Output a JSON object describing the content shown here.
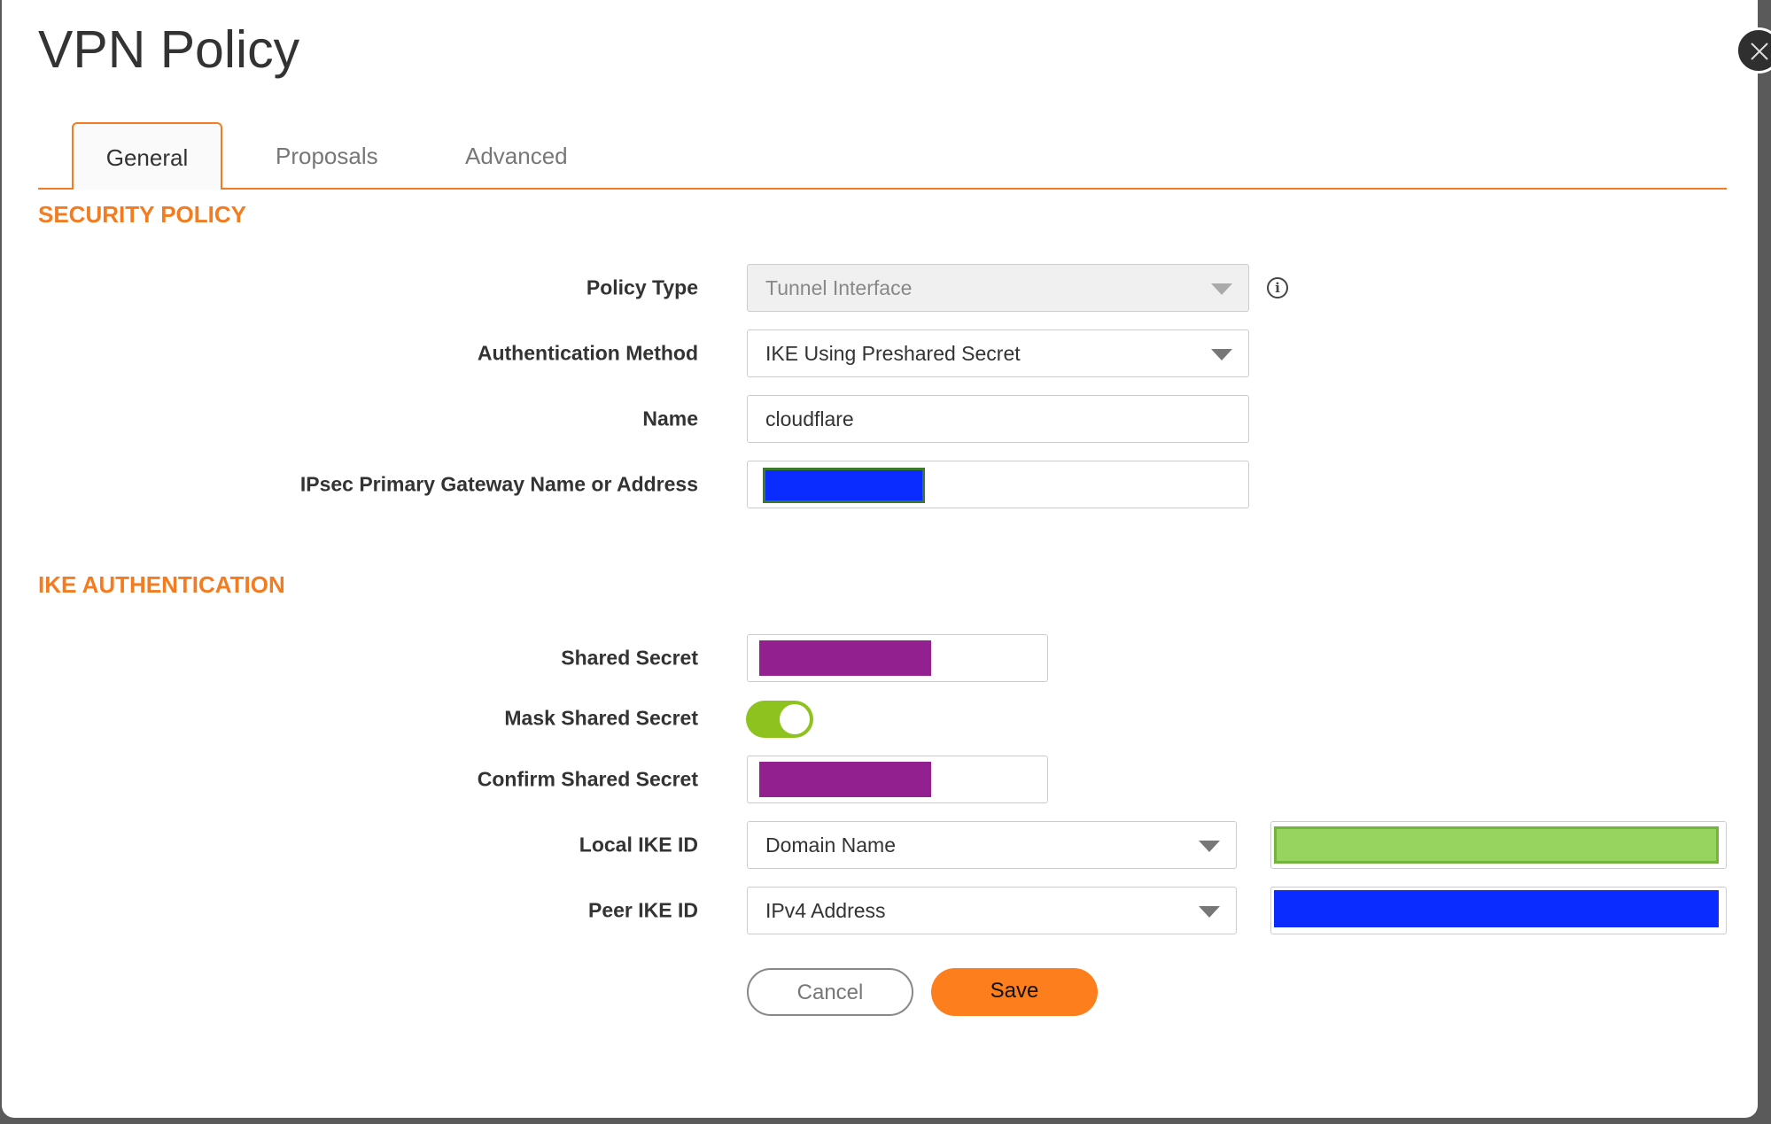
{
  "dialog": {
    "title": "VPN Policy"
  },
  "tabs": [
    {
      "label": "General",
      "active": true
    },
    {
      "label": "Proposals"
    },
    {
      "label": "Advanced"
    }
  ],
  "security_policy": {
    "heading": "SECURITY POLICY",
    "policy_type": {
      "label": "Policy Type",
      "value": "Tunnel Interface",
      "disabled": true
    },
    "auth_method": {
      "label": "Authentication Method",
      "value": "IKE Using Preshared Secret"
    },
    "name": {
      "label": "Name",
      "value": "cloudflare"
    },
    "gateway": {
      "label": "IPsec Primary Gateway Name or Address",
      "value_redacted_color": "#0a2cff"
    }
  },
  "ike_auth": {
    "heading": "IKE AUTHENTICATION",
    "shared_secret": {
      "label": "Shared Secret",
      "value_redacted_color": "#93208f"
    },
    "mask_shared_secret": {
      "label": "Mask Shared Secret",
      "on": true
    },
    "confirm_shared_secret": {
      "label": "Confirm Shared Secret",
      "value_redacted_color": "#93208f"
    },
    "local_ike_id": {
      "label": "Local IKE ID",
      "type": "Domain Name",
      "value_redacted_color": "#97d35f"
    },
    "peer_ike_id": {
      "label": "Peer IKE ID",
      "type": "IPv4 Address",
      "value_redacted_color": "#0a2cff"
    }
  },
  "buttons": {
    "cancel": "Cancel",
    "save": "Save"
  },
  "colors": {
    "accent": "#f47c20",
    "toggle_on": "#8dc21f",
    "save_button": "#fd7e1c"
  }
}
